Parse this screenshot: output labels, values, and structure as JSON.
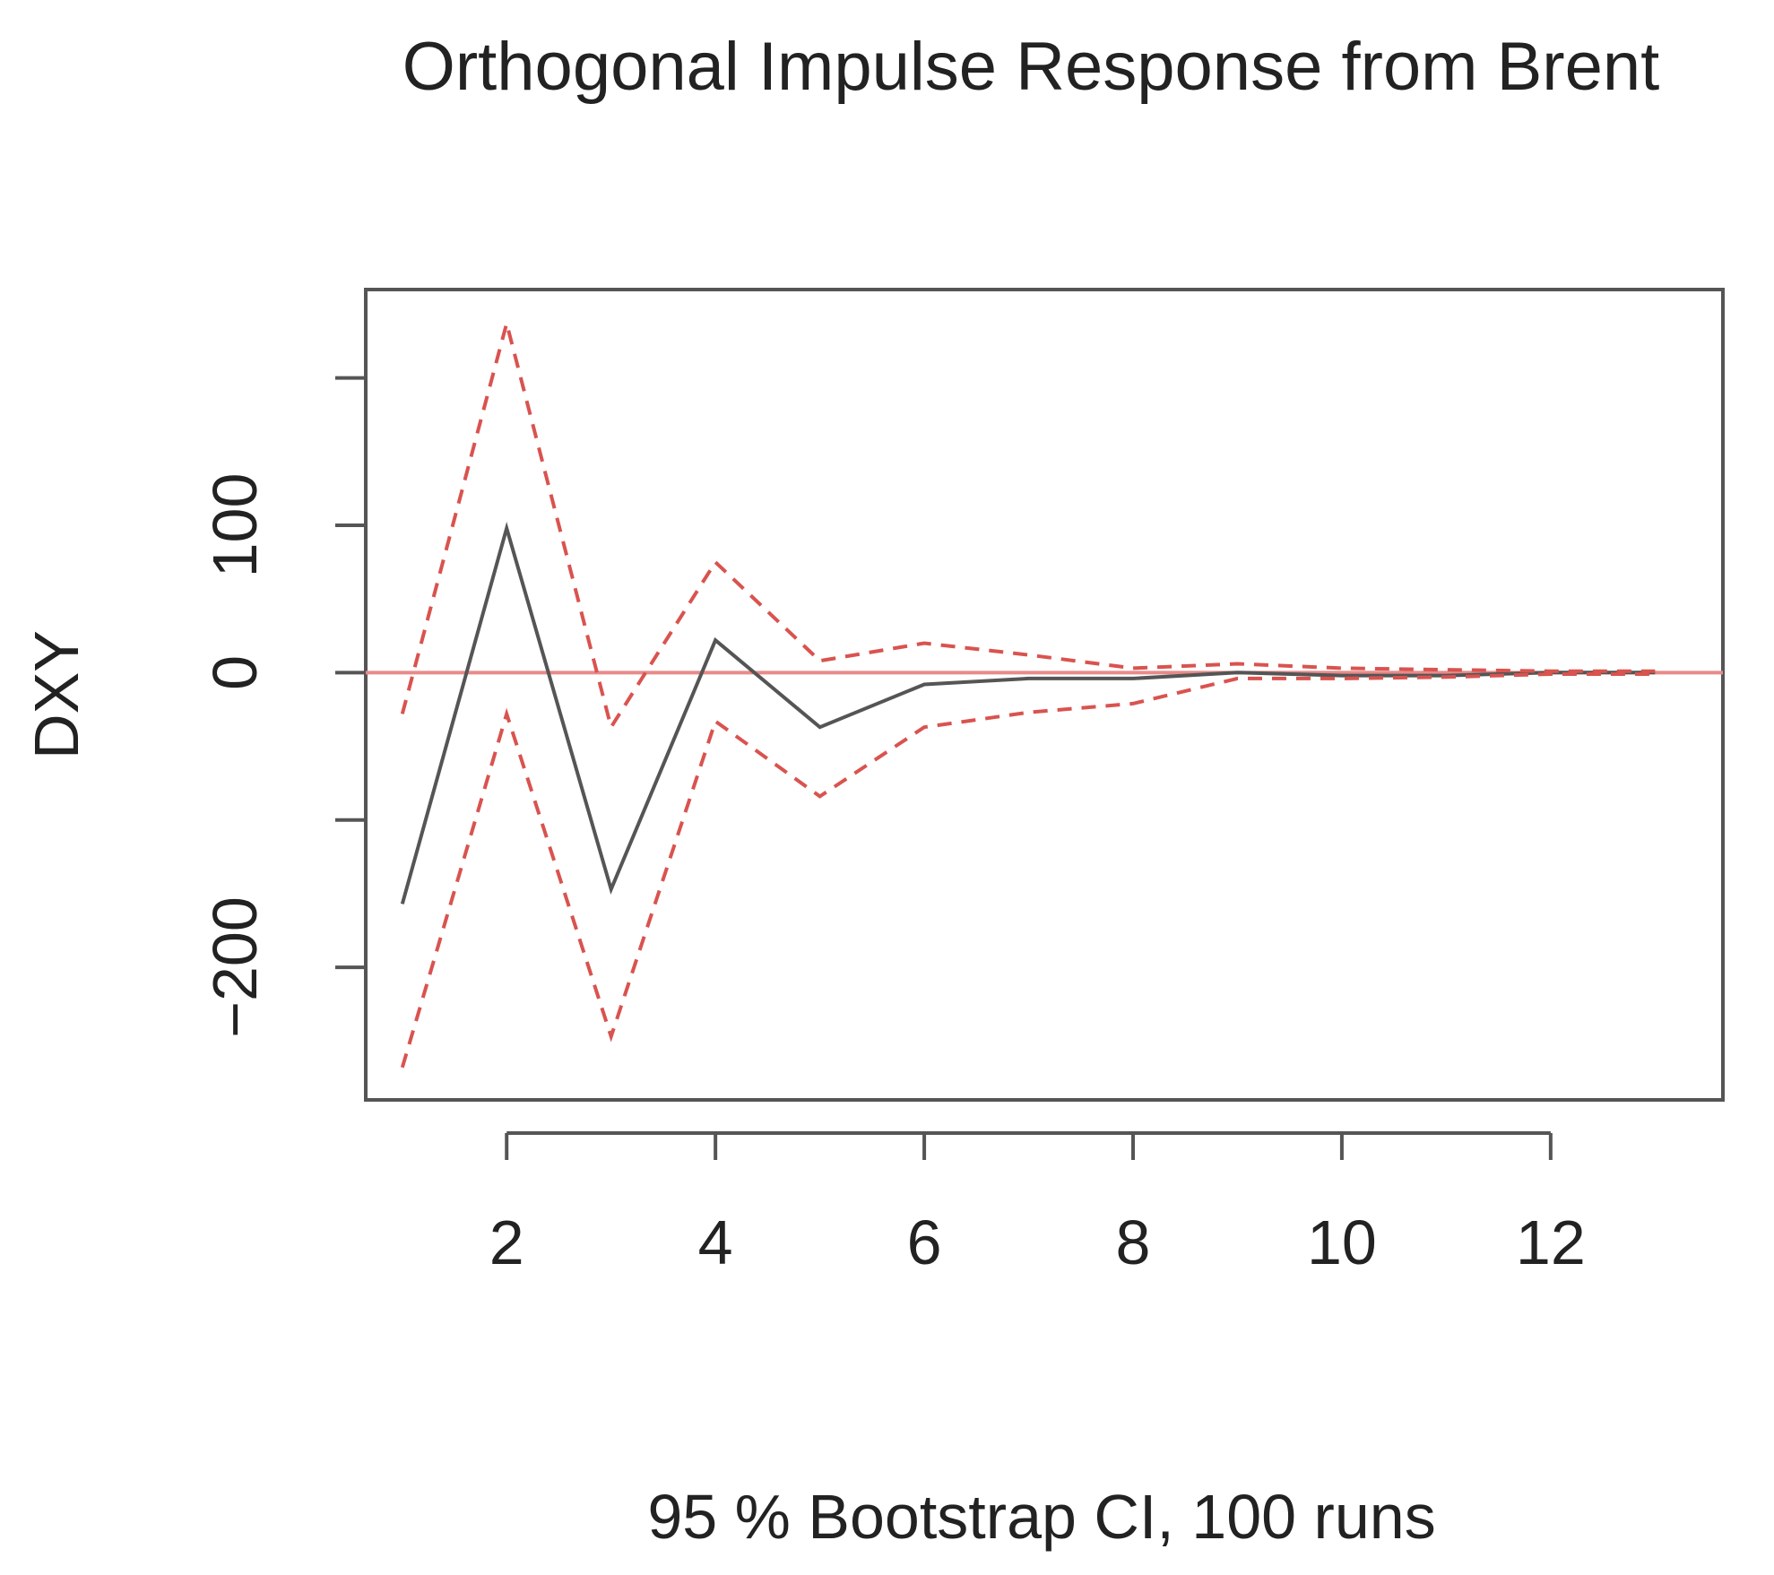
{
  "chart_data": {
    "type": "line",
    "title": "Orthogonal Impulse Response from Brent",
    "xlabel": "95 % Bootstrap CI,  100 runs",
    "ylabel": "DXY",
    "x": [
      1,
      2,
      3,
      4,
      5,
      6,
      7,
      8,
      9,
      10,
      11,
      12,
      13
    ],
    "xlim": [
      0.65,
      13.65
    ],
    "ylim": [
      -290,
      260
    ],
    "x_ticks": [
      2,
      4,
      6,
      8,
      10,
      12
    ],
    "x_tick_labels": [
      "2",
      "4",
      "6",
      "8",
      "10",
      "12"
    ],
    "y_ticks": [
      -200,
      -100,
      0,
      100,
      200
    ],
    "y_tick_labels": [
      "−200",
      "",
      "0",
      "100",
      ""
    ],
    "reference_line": {
      "y": 0,
      "color": "#e88a8a"
    },
    "grid": false,
    "series": [
      {
        "role": "response",
        "color": "#555555",
        "dash": "solid",
        "values": [
          -157,
          98,
          -147,
          22,
          -37,
          -8,
          -4,
          -4,
          0,
          -2,
          -2,
          0,
          0
        ]
      },
      {
        "role": "upper-ci",
        "color": "#d9534f",
        "dash": "dashed",
        "values": [
          -28,
          237,
          -37,
          75,
          8,
          20,
          12,
          3,
          6,
          3,
          2,
          1,
          1
        ]
      },
      {
        "role": "lower-ci",
        "color": "#d9534f",
        "dash": "dashed",
        "values": [
          -268,
          -28,
          -247,
          -33,
          -84,
          -37,
          -27,
          -21,
          -4,
          -4,
          -3,
          -1,
          -1
        ]
      }
    ]
  }
}
